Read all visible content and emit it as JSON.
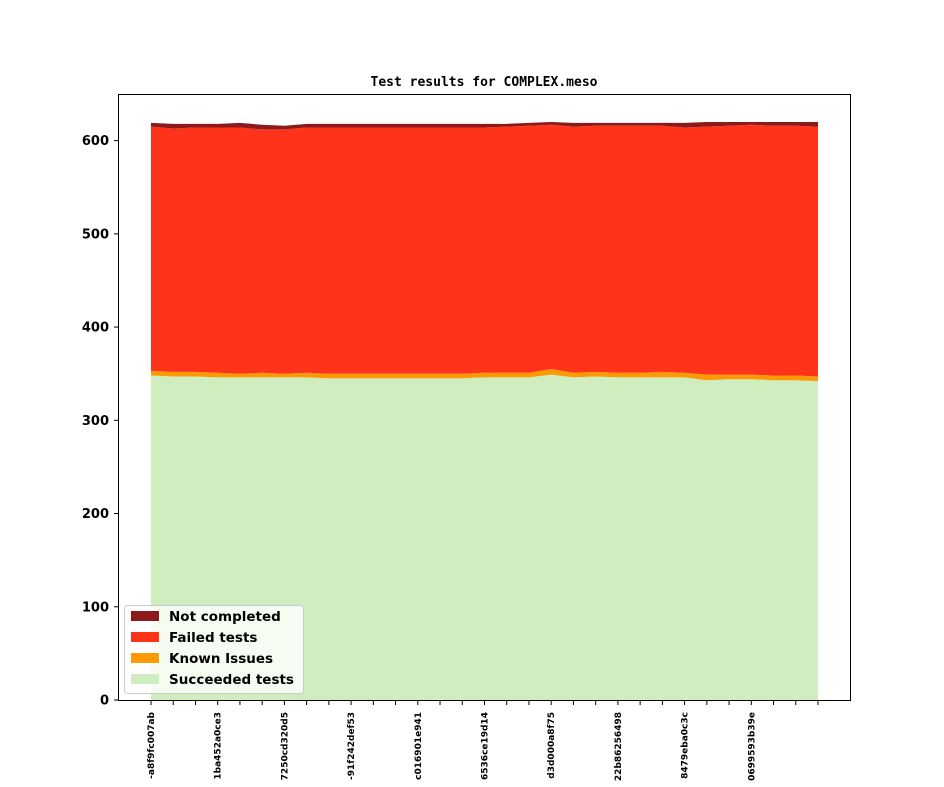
{
  "chart_data": {
    "type": "area",
    "title": "Test results for COMPLEX.meso",
    "xlabel": "",
    "ylabel": "",
    "ylim": [
      0,
      650
    ],
    "yticks": [
      0,
      100,
      200,
      300,
      400,
      500,
      600
    ],
    "stacked": true,
    "grid": false,
    "legend_position": "lower-left",
    "x_tick_labels": [
      "-a8f9fc007ab",
      "1ba452a0ce3",
      "7250cd320d5",
      "-91f242def53",
      "c016901e941",
      "6536ce19d14",
      "d3d000a8f75",
      "22b86256498",
      "8479eba0c3c",
      "0699593b39e"
    ],
    "series": [
      {
        "name": "Succeeded tests",
        "color": "#cfedbe",
        "values": [
          348,
          347,
          347,
          346,
          346,
          346,
          346,
          346,
          345,
          345,
          345,
          345,
          345,
          345,
          345,
          346,
          346,
          346,
          349,
          346,
          347,
          346,
          346,
          346,
          346,
          343,
          344,
          344,
          343,
          343,
          342
        ]
      },
      {
        "name": "Known Issues",
        "color": "#fb9a05",
        "values": [
          5,
          5,
          5,
          5,
          4,
          5,
          4,
          5,
          5,
          5,
          5,
          5,
          5,
          5,
          5,
          5,
          5,
          5,
          6,
          5,
          5,
          5,
          5,
          6,
          5,
          6,
          5,
          5,
          5,
          5,
          5
        ]
      },
      {
        "name": "Failed tests",
        "color": "#ff321a",
        "values": [
          262,
          261,
          262,
          263,
          264,
          261,
          262,
          263,
          264,
          264,
          264,
          264,
          264,
          264,
          264,
          263,
          264,
          265,
          262,
          264,
          264,
          265,
          265,
          264,
          263,
          266,
          267,
          268,
          268,
          268,
          268
        ]
      },
      {
        "name": "Not completed",
        "color": "#8c1a1a",
        "values": [
          4,
          5,
          4,
          4,
          5,
          5,
          4,
          4,
          4,
          4,
          4,
          4,
          4,
          4,
          4,
          4,
          3,
          3,
          3,
          4,
          3,
          3,
          3,
          3,
          5,
          5,
          4,
          3,
          4,
          4,
          5
        ]
      }
    ]
  }
}
